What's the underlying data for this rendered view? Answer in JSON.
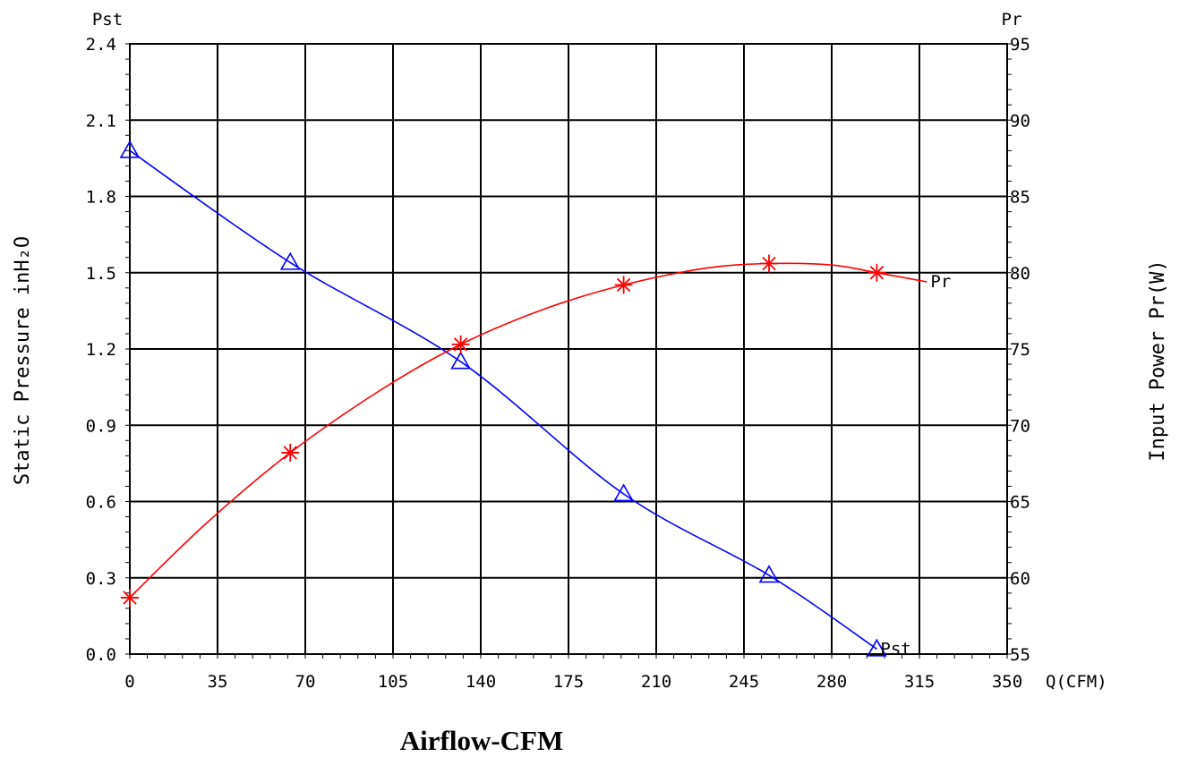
{
  "chart_data": {
    "type": "line",
    "x_unit_label": "Q(CFM)",
    "xlabel": "Airflow-CFM",
    "xlim": [
      0,
      350
    ],
    "x_ticks": [
      "0",
      "35",
      "70",
      "105",
      "140",
      "175",
      "210",
      "245",
      "280",
      "315",
      "350"
    ],
    "left_axis": {
      "top_label": "Pst",
      "ylabel": "Static Pressure inH₂O",
      "ylim": [
        0,
        2.4
      ],
      "ticks": [
        "0.0",
        "0.3",
        "0.6",
        "0.9",
        "1.2",
        "1.5",
        "1.8",
        "2.1",
        "2.4"
      ]
    },
    "right_axis": {
      "top_label": "Pr",
      "ylabel": "Input Power Pr(W)",
      "ylim": [
        55,
        95
      ],
      "ticks": [
        "55",
        "60",
        "65",
        "70",
        "75",
        "80",
        "85",
        "90",
        "95"
      ]
    },
    "grid": true,
    "series": [
      {
        "name": "Pst",
        "axis": "left",
        "color": "#0000ff",
        "marker": "triangle",
        "curve": [
          [
            0,
            1.98
          ],
          [
            64,
            1.54
          ],
          [
            132,
            1.15
          ],
          [
            197,
            0.63
          ],
          [
            255,
            0.31
          ],
          [
            298,
            0.02
          ]
        ],
        "markers": [
          [
            0,
            1.98
          ],
          [
            64,
            1.54
          ],
          [
            132,
            1.15
          ],
          [
            197,
            0.63
          ],
          [
            255,
            0.31
          ],
          [
            298,
            0.02
          ]
        ]
      },
      {
        "name": "Pr",
        "axis": "right",
        "color": "#ff0000",
        "marker": "asterisk",
        "curve": [
          [
            0,
            58.7
          ],
          [
            30,
            63.5
          ],
          [
            64,
            68.2
          ],
          [
            100,
            72.3
          ],
          [
            132,
            75.3
          ],
          [
            165,
            77.6
          ],
          [
            197,
            79.2
          ],
          [
            230,
            80.3
          ],
          [
            255,
            80.6
          ],
          [
            280,
            80.5
          ],
          [
            298,
            80.0
          ],
          [
            318,
            79.4
          ]
        ],
        "markers": [
          [
            0,
            58.7
          ],
          [
            64,
            68.2
          ],
          [
            132,
            75.3
          ],
          [
            197,
            79.2
          ],
          [
            255,
            80.6
          ],
          [
            298,
            80.0
          ]
        ]
      }
    ]
  }
}
